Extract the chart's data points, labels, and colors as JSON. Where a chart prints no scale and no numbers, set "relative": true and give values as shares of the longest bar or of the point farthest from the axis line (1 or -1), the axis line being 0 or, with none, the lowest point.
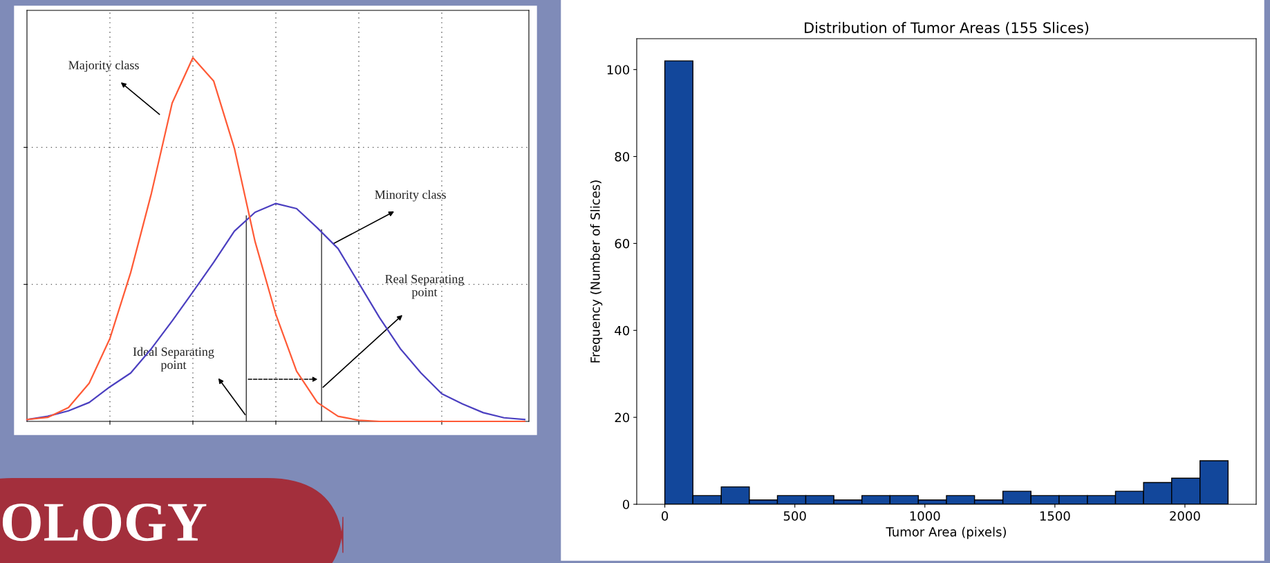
{
  "chart_data": [
    {
      "type": "line",
      "relative": true,
      "grid": true,
      "tick_labels": false,
      "categories": [
        null,
        null,
        null,
        null,
        null,
        null,
        null,
        null,
        null,
        null,
        null,
        null,
        null,
        null,
        null,
        null,
        null,
        null,
        null,
        null,
        null,
        null,
        null,
        null,
        null
      ],
      "series": [
        {
          "color": "#ff5a36",
          "values": [
            0.005,
            0.011,
            0.038,
            0.105,
            0.228,
            0.409,
            0.627,
            0.875,
            1.0,
            0.936,
            0.751,
            0.494,
            0.294,
            0.138,
            0.052,
            0.014,
            0.003,
            0,
            0,
            0,
            0,
            0,
            0,
            0,
            0
          ]
        },
        {
          "color": "#4b3fc0",
          "values": [
            0.005,
            0.014,
            0.029,
            0.052,
            0.095,
            0.133,
            0.2,
            0.276,
            0.356,
            0.437,
            0.523,
            0.575,
            0.599,
            0.585,
            0.532,
            0.475,
            0.38,
            0.285,
            0.2,
            0.133,
            0.076,
            0.048,
            0.024,
            0.01,
            0.005
          ]
        }
      ],
      "annotations": [
        "Majority class",
        "Minority class",
        "Real Separating\npoint",
        "Ideal Separating\npoint",
        "OLOGY"
      ]
    },
    {
      "type": "histogram",
      "title": "Distribution of Tumor Areas (155 Slices)",
      "xlabel": "Tumor Area (pixels)",
      "ylabel": "Frequency (Number of Slices)",
      "color": "#12479b",
      "bins": [
        0,
        108,
        217,
        325,
        433,
        542,
        650,
        758,
        866,
        975,
        1083,
        1191,
        1300,
        1408,
        1516,
        1625,
        1733,
        1841,
        1949,
        2058,
        2166
      ],
      "values": [
        102,
        2,
        4,
        1,
        2,
        2,
        1,
        2,
        2,
        1,
        2,
        1,
        3,
        2,
        2,
        2,
        3,
        5,
        6,
        10
      ],
      "xlim": [
        -108,
        2274
      ],
      "ylim": [
        0,
        107.1
      ],
      "xticks": [
        0,
        500,
        1000,
        1500,
        2000
      ],
      "yticks": [
        0,
        20,
        40,
        60,
        80,
        100
      ]
    }
  ]
}
